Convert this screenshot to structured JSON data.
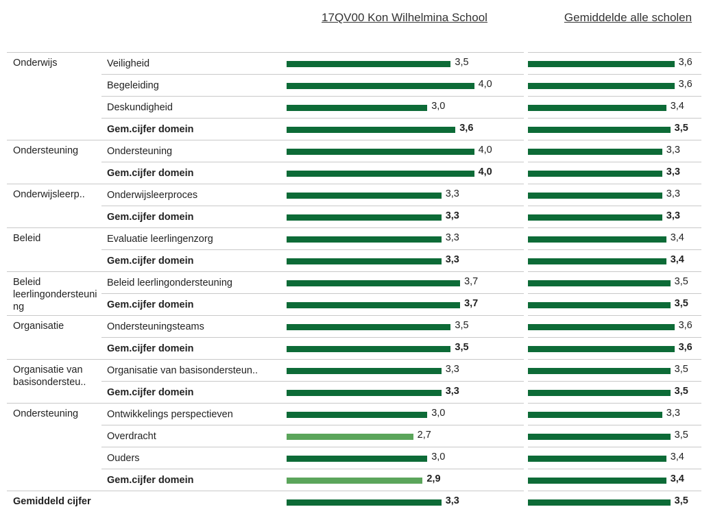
{
  "chart_data": {
    "type": "bar",
    "orientation": "horizontal",
    "series": [
      {
        "name": "17QV00 Kon Wilhelmina School",
        "color": "#0d6b37",
        "xlim": [
          0,
          5
        ]
      },
      {
        "name": "Gemiddelde alle scholen",
        "color": "#0d6b37",
        "xlim": [
          0,
          4.5
        ]
      }
    ],
    "groups": [
      {
        "label": "Onderwijs",
        "rows": [
          {
            "label": "Veiligheid",
            "values": [
              3.5,
              3.6
            ],
            "value_labels": [
              "3,5",
              "3,6"
            ]
          },
          {
            "label": "Begeleiding",
            "values": [
              4.0,
              3.6
            ],
            "value_labels": [
              "4,0",
              "3,6"
            ]
          },
          {
            "label": "Deskundigheid",
            "values": [
              3.0,
              3.4
            ],
            "value_labels": [
              "3,0",
              "3,4"
            ]
          },
          {
            "label": "Gem.cijfer domein",
            "bold": true,
            "values": [
              3.6,
              3.5
            ],
            "value_labels": [
              "3,6",
              "3,5"
            ]
          }
        ]
      },
      {
        "label": "Ondersteuning",
        "rows": [
          {
            "label": "Ondersteuning",
            "values": [
              4.0,
              3.3
            ],
            "value_labels": [
              "4,0",
              "3,3"
            ]
          },
          {
            "label": "Gem.cijfer domein",
            "bold": true,
            "values": [
              4.0,
              3.3
            ],
            "value_labels": [
              "4,0",
              "3,3"
            ]
          }
        ]
      },
      {
        "label": "Onderwijsleerp..",
        "rows": [
          {
            "label": "Onderwijsleerproces",
            "values": [
              3.3,
              3.3
            ],
            "value_labels": [
              "3,3",
              "3,3"
            ]
          },
          {
            "label": "Gem.cijfer domein",
            "bold": true,
            "values": [
              3.3,
              3.3
            ],
            "value_labels": [
              "3,3",
              "3,3"
            ]
          }
        ]
      },
      {
        "label": "Beleid",
        "rows": [
          {
            "label": "Evaluatie leerlingenzorg",
            "values": [
              3.3,
              3.4
            ],
            "value_labels": [
              "3,3",
              "3,4"
            ]
          },
          {
            "label": "Gem.cijfer domein",
            "bold": true,
            "values": [
              3.3,
              3.4
            ],
            "value_labels": [
              "3,3",
              "3,4"
            ]
          }
        ]
      },
      {
        "label": "Beleid leerlingondersteuning",
        "rows": [
          {
            "label": "Beleid leerlingondersteuning",
            "values": [
              3.7,
              3.5
            ],
            "value_labels": [
              "3,7",
              "3,5"
            ]
          },
          {
            "label": "Gem.cijfer domein",
            "bold": true,
            "values": [
              3.7,
              3.5
            ],
            "value_labels": [
              "3,7",
              "3,5"
            ]
          }
        ]
      },
      {
        "label": "Organisatie",
        "rows": [
          {
            "label": "Ondersteuningsteams",
            "values": [
              3.5,
              3.6
            ],
            "value_labels": [
              "3,5",
              "3,6"
            ]
          },
          {
            "label": "Gem.cijfer domein",
            "bold": true,
            "values": [
              3.5,
              3.6
            ],
            "value_labels": [
              "3,5",
              "3,6"
            ]
          }
        ]
      },
      {
        "label": "Organisatie van basisondersteu..",
        "rows": [
          {
            "label": "Organisatie van basisondersteun..",
            "values": [
              3.3,
              3.5
            ],
            "value_labels": [
              "3,3",
              "3,5"
            ]
          },
          {
            "label": "Gem.cijfer domein",
            "bold": true,
            "values": [
              3.3,
              3.5
            ],
            "value_labels": [
              "3,3",
              "3,5"
            ]
          }
        ]
      },
      {
        "label": "Ondersteuning",
        "rows": [
          {
            "label": "Ontwikkelings perspectieven",
            "values": [
              3.0,
              3.3
            ],
            "value_labels": [
              "3,0",
              "3,3"
            ]
          },
          {
            "label": "Overdracht",
            "values": [
              2.7,
              3.5
            ],
            "value_labels": [
              "2,7",
              "3,5"
            ],
            "colors": [
              "#5ba55b",
              "#0d6b37"
            ]
          },
          {
            "label": "Ouders",
            "values": [
              3.0,
              3.4
            ],
            "value_labels": [
              "3,0",
              "3,4"
            ]
          },
          {
            "label": "Gem.cijfer domein",
            "bold": true,
            "values": [
              2.9,
              3.4
            ],
            "value_labels": [
              "2,9",
              "3,4"
            ],
            "colors": [
              "#5ba55b",
              "#0d6b37"
            ]
          }
        ]
      },
      {
        "label": "Gemiddeld cijfer",
        "bold": true,
        "rows": [
          {
            "label": null,
            "bold": true,
            "values": [
              3.3,
              3.5
            ],
            "value_labels": [
              "3,3",
              "3,5"
            ]
          }
        ]
      }
    ]
  }
}
